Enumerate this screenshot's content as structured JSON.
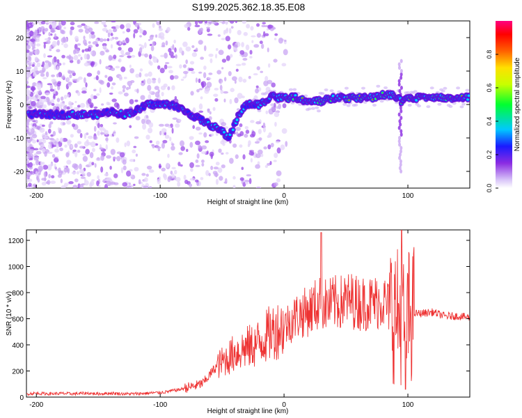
{
  "chart_data": [
    {
      "type": "heatmap",
      "title": "S199.2025.362.18.35.E08",
      "xlabel": "Height of straight line (km)",
      "ylabel": "Frequency (Hz)",
      "xlim": [
        -208,
        150
      ],
      "ylim": [
        -25,
        25
      ],
      "xticks": [
        -200,
        -100,
        0,
        100
      ],
      "xtick_labels": [
        "-200",
        "-100",
        "0",
        "100"
      ],
      "yticks": [
        -20,
        -10,
        0,
        10,
        20
      ],
      "ytick_labels": [
        "-20",
        "-10",
        "0",
        "10",
        "20"
      ],
      "colorbar": {
        "label": "Normalized spectral amplitude",
        "range": [
          0,
          1
        ],
        "ticks": [
          0.0,
          0.2,
          0.4,
          0.6,
          0.8
        ],
        "tick_labels": [
          "0.0",
          "0.2",
          "0.4",
          "0.6",
          "0.8"
        ]
      },
      "ridge": {
        "x": [
          -205,
          -190,
          -175,
          -160,
          -150,
          -140,
          -130,
          -120,
          -110,
          -100,
          -90,
          -80,
          -70,
          -60,
          -50,
          -45,
          -40,
          -35,
          -30,
          -25,
          -20,
          -15,
          -10,
          -5,
          0,
          10,
          20,
          30,
          40,
          50,
          60,
          70,
          80,
          88,
          95,
          100,
          110,
          120,
          130,
          140,
          150
        ],
        "y": [
          -3,
          -3,
          -3,
          -3,
          -3,
          -2,
          -3,
          -2,
          0,
          0,
          0,
          -2,
          -4,
          -6,
          -8,
          -10,
          -6,
          -2,
          0,
          0,
          0,
          1,
          3,
          2,
          2,
          2,
          1,
          1,
          2,
          2,
          2,
          2,
          3,
          3,
          1,
          2,
          2,
          2,
          2,
          2,
          2
        ]
      }
    },
    {
      "type": "line",
      "xlabel": "Height of straight line (km)",
      "ylabel": "SNR (10 * v/v)",
      "xlim": [
        -208,
        150
      ],
      "ylim": [
        0,
        1280
      ],
      "xticks": [
        -200,
        -100,
        0,
        100
      ],
      "xtick_labels": [
        "-200",
        "-100",
        "0",
        "100"
      ],
      "yticks": [
        0,
        200,
        400,
        600,
        800,
        1000,
        1200
      ],
      "ytick_labels": [
        "0",
        "200",
        "400",
        "600",
        "800",
        "1000",
        "1200"
      ],
      "series": [
        {
          "name": "SNR",
          "color": "#ee3333",
          "x": [
            -208,
            -200,
            -190,
            -180,
            -170,
            -160,
            -150,
            -140,
            -130,
            -120,
            -110,
            -100,
            -95,
            -90,
            -85,
            -80,
            -75,
            -70,
            -65,
            -60,
            -55,
            -50,
            -45,
            -40,
            -35,
            -30,
            -25,
            -20,
            -15,
            -10,
            -5,
            0,
            5,
            10,
            15,
            20,
            25,
            30,
            35,
            40,
            45,
            50,
            55,
            60,
            65,
            70,
            75,
            80,
            85,
            90,
            95,
            98,
            102,
            105,
            110,
            120,
            130,
            140,
            150
          ],
          "values": [
            25,
            30,
            25,
            28,
            25,
            30,
            25,
            30,
            25,
            25,
            30,
            35,
            40,
            50,
            55,
            70,
            80,
            90,
            110,
            170,
            230,
            270,
            300,
            340,
            360,
            380,
            390,
            420,
            460,
            500,
            520,
            540,
            580,
            620,
            640,
            660,
            700,
            720,
            700,
            720,
            720,
            740,
            740,
            720,
            720,
            720,
            730,
            740,
            680,
            640,
            600,
            560,
            650,
            640,
            640,
            650,
            620,
            620,
            610
          ],
          "spikes": [
            {
              "x": 30,
              "value": 1260
            },
            {
              "x": 95,
              "value": 1280
            },
            {
              "x": 98,
              "value": 60
            }
          ]
        }
      ]
    }
  ]
}
